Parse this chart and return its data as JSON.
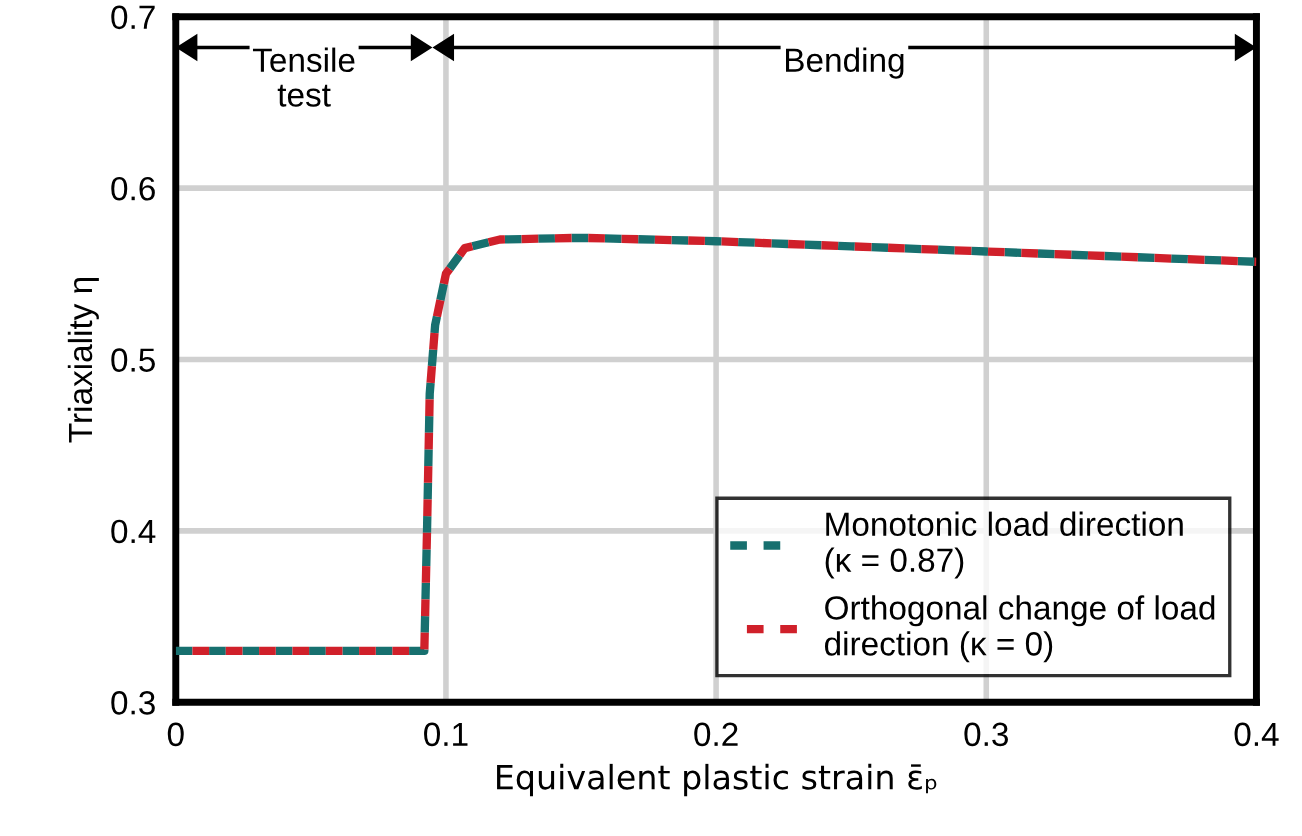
{
  "chart_data": {
    "type": "line",
    "xlabel": "Equivalent plastic strain ε̄ₚ",
    "ylabel": "Triaxiality η",
    "xlim": [
      0,
      0.4
    ],
    "ylim": [
      0.3,
      0.7
    ],
    "xticks": [
      0,
      0.1,
      0.2,
      0.3,
      0.4
    ],
    "yticks": [
      0.3,
      0.4,
      0.5,
      0.6,
      0.7
    ],
    "x": [
      0,
      0.092,
      0.093,
      0.094,
      0.096,
      0.1,
      0.107,
      0.12,
      0.15,
      0.2,
      0.25,
      0.3,
      0.35,
      0.4
    ],
    "series": [
      {
        "name": "Monotonic load direction\n(κ = 0.87)",
        "color": "#17706f",
        "values": [
          0.33,
          0.33,
          0.4,
          0.48,
          0.52,
          0.55,
          0.565,
          0.57,
          0.571,
          0.569,
          0.566,
          0.563,
          0.56,
          0.557
        ]
      },
      {
        "name": "Orthogonal change of load\ndirection (κ = 0)",
        "color": "#d0202a",
        "values": [
          0.33,
          0.33,
          0.4,
          0.48,
          0.52,
          0.55,
          0.565,
          0.57,
          0.571,
          0.569,
          0.566,
          0.563,
          0.56,
          0.557
        ]
      }
    ],
    "annotations": [
      "Tensile\ntest",
      "Bending"
    ],
    "grid": true,
    "legend": "bottom right",
    "line_style": "dashed",
    "marker": "none"
  }
}
